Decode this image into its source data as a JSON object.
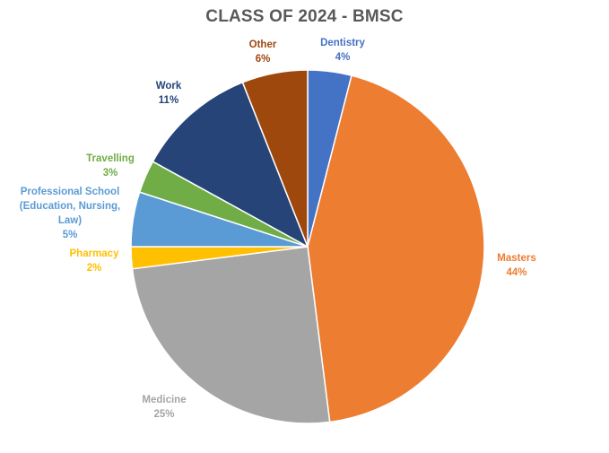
{
  "chart_data": {
    "type": "pie",
    "title": "CLASS OF 2024 - BMSC",
    "slices": [
      {
        "label": "Dentistry",
        "value": 4,
        "pct_label": "4%",
        "color": "#4472C4"
      },
      {
        "label": "Masters",
        "value": 44,
        "pct_label": "44%",
        "color": "#ED7D31"
      },
      {
        "label": "Medicine",
        "value": 25,
        "pct_label": "25%",
        "color": "#A5A5A5"
      },
      {
        "label": "Pharmacy",
        "value": 2,
        "pct_label": "2%",
        "color": "#FFC000"
      },
      {
        "label": "Professional School (Education, Nursing, Law)",
        "label_lines": [
          "Professional School",
          "(Education, Nursing,",
          "Law)"
        ],
        "value": 5,
        "pct_label": "5%",
        "color": "#5B9BD5"
      },
      {
        "label": "Travelling",
        "value": 3,
        "pct_label": "3%",
        "color": "#70AD47"
      },
      {
        "label": "Work",
        "value": 11,
        "pct_label": "11%",
        "color": "#264478"
      },
      {
        "label": "Other",
        "value": 6,
        "pct_label": "6%",
        "color": "#9E480E"
      }
    ],
    "legend": "none"
  }
}
